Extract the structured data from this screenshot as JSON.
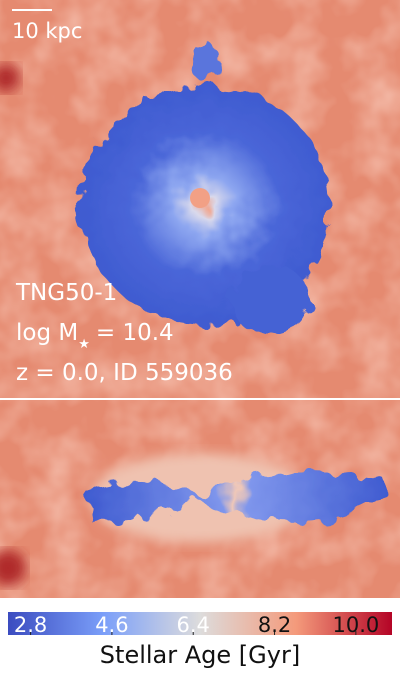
{
  "face_on": {
    "scale_bar": "10 kpc",
    "simulation": "TNG50-1",
    "mass_symbol": "log M",
    "mass_subscript": "★",
    "mass_value": "= 10.4",
    "redshift_id": "z = 0.0, ID 559036"
  },
  "colorbar": {
    "label": "Stellar Age [Gyr]",
    "lim": [
      2.3,
      10.8
    ],
    "ticks": [
      2.8,
      4.6,
      6.4,
      8.2,
      {
        "value": 10,
        "label": "10.0"
      }
    ]
  }
}
